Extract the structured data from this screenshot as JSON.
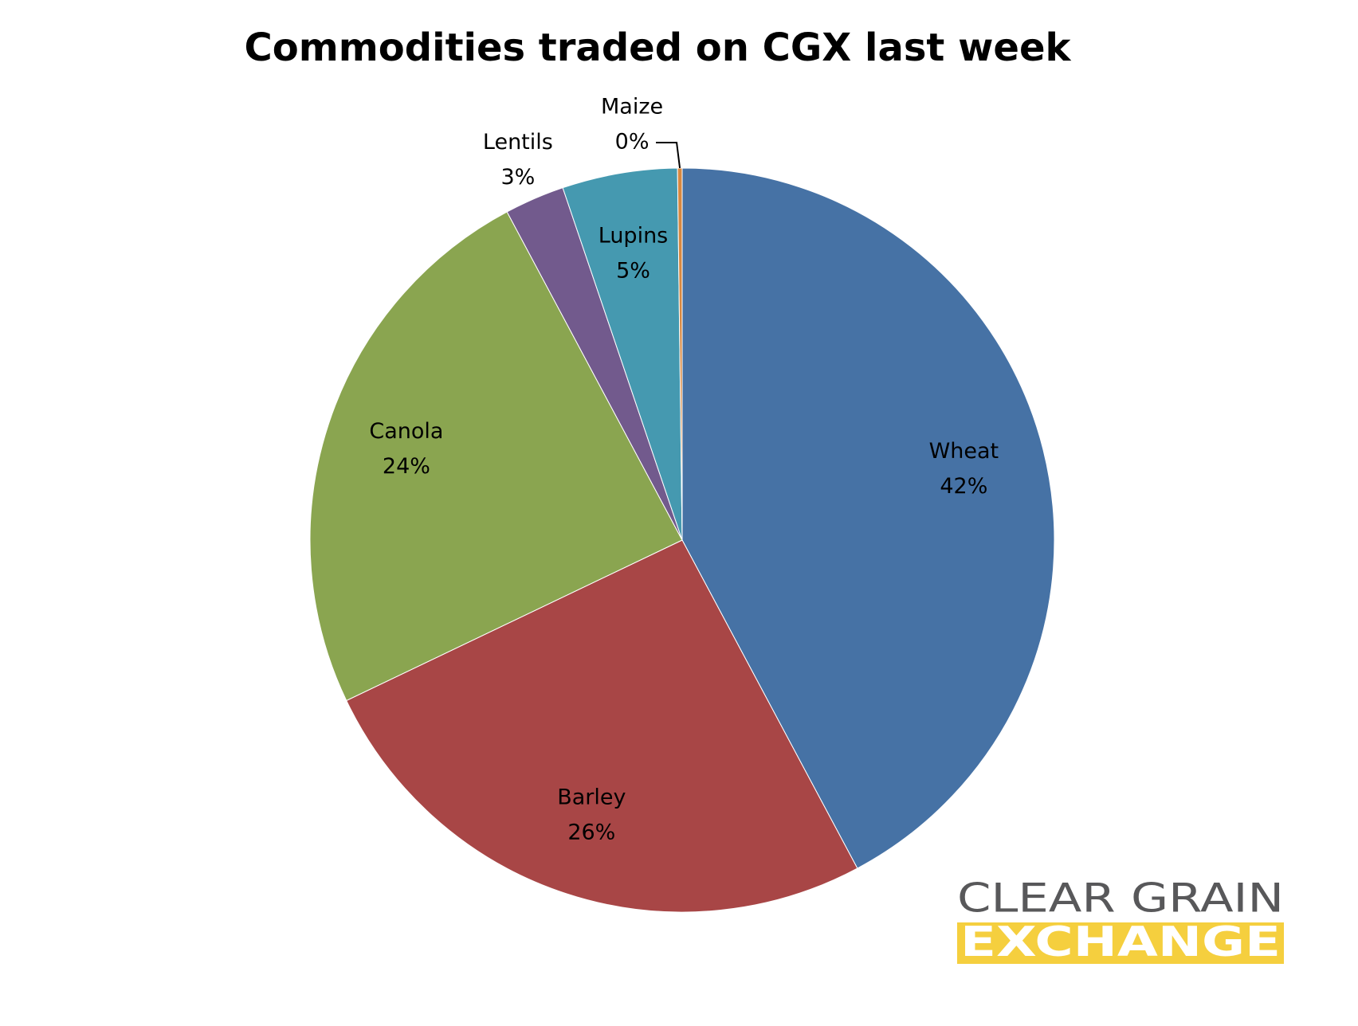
{
  "chart_data": {
    "type": "pie",
    "title": "Commodities traded on CGX last week",
    "categories": [
      "Wheat",
      "Barley",
      "Canola",
      "Lentils",
      "Lupins",
      "Maize"
    ],
    "values": [
      42.2,
      25.7,
      24.3,
      2.6,
      5.0,
      0.2
    ],
    "value_labels": [
      "42%",
      "26%",
      "24%",
      "3%",
      "5%",
      "0%"
    ],
    "colors": [
      "#4672a5",
      "#a84646",
      "#8aa550",
      "#725a8d",
      "#4599b0",
      "#d88840"
    ]
  },
  "logo": {
    "line1": "CLEAR GRAIN",
    "line2": "EXCHANGE"
  }
}
